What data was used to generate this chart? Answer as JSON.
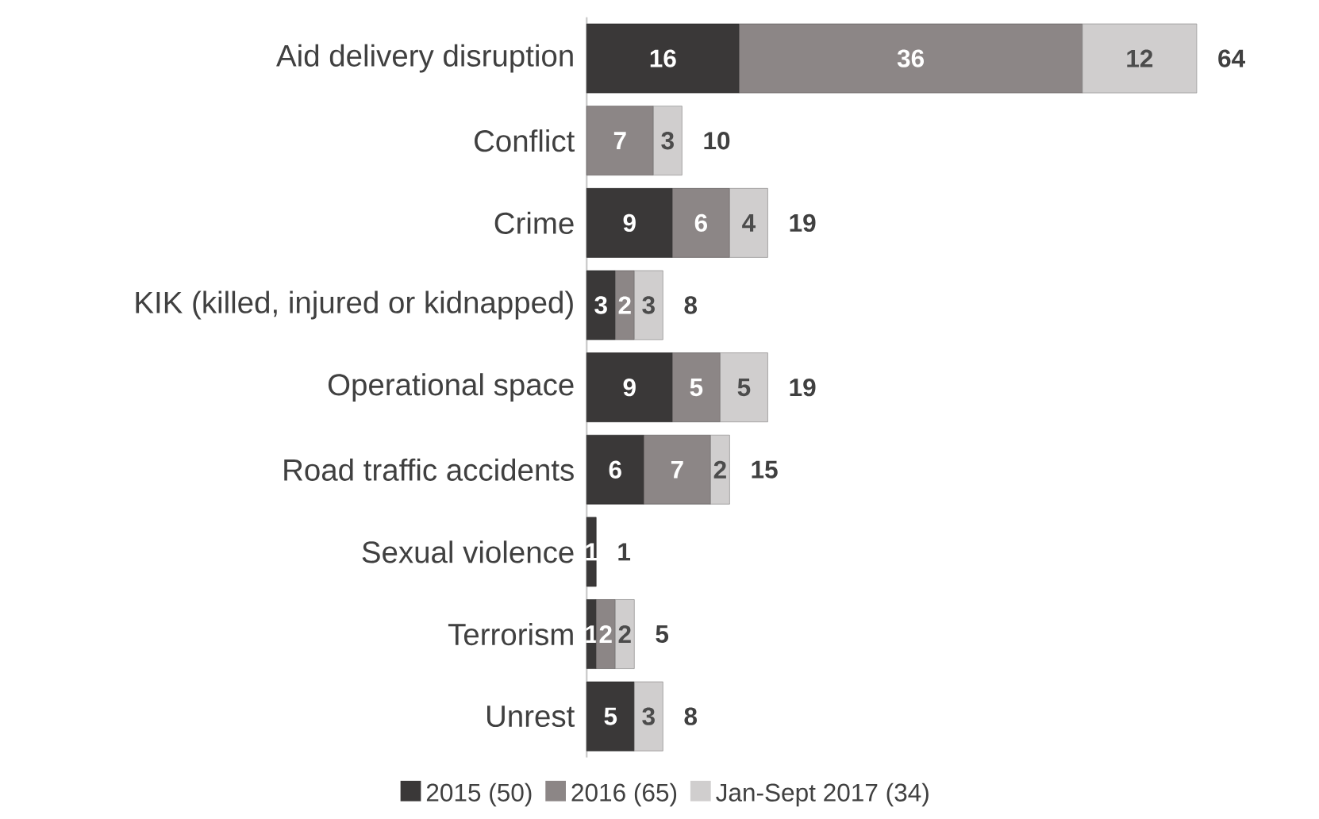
{
  "chart_data": {
    "type": "bar",
    "orientation": "horizontal",
    "stacked": true,
    "data_labels": true,
    "legend": "bottom",
    "tick_labels": "y",
    "categories": [
      "Aid delivery disruption",
      "Conflict",
      "Crime",
      "KIK (killed, injured or kidnapped)",
      "Operational space",
      "Road traffic accidents",
      "Sexual violence",
      "Terrorism",
      "Unrest"
    ],
    "series": [
      {
        "name": "2015 (50)",
        "color": "#3a3838",
        "values": [
          16,
          null,
          9,
          3,
          9,
          6,
          1,
          1,
          5
        ]
      },
      {
        "name": "2016 (65)",
        "color": "#8c8686",
        "values": [
          36,
          7,
          6,
          2,
          5,
          7,
          null,
          2,
          null
        ]
      },
      {
        "name": "Jan-Sept 2017 (34)",
        "color": "#d0cece",
        "values": [
          12,
          3,
          4,
          3,
          5,
          2,
          null,
          2,
          3
        ]
      }
    ],
    "totals": [
      "64",
      "10",
      "19",
      "8",
      "19",
      "15",
      "1",
      "5",
      "8"
    ]
  }
}
